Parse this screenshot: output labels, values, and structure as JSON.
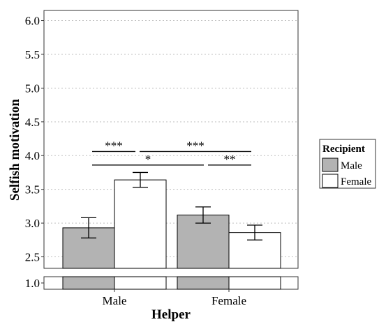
{
  "chart_data": {
    "type": "bar",
    "xlabel": "Helper",
    "ylabel": "Selfish motivation",
    "categories": [
      "Male",
      "Female"
    ],
    "series": [
      {
        "name": "Male",
        "values": [
          2.93,
          3.12
        ],
        "error": [
          0.15,
          0.12
        ],
        "color": "#b3b3b3"
      },
      {
        "name": "Female",
        "values": [
          3.64,
          2.86
        ],
        "error": [
          0.11,
          0.11
        ],
        "color": "#ffffff"
      }
    ],
    "ylim": [
      2.33,
      6.15
    ],
    "broken_axis": {
      "lower_tick": "1.0",
      "lower_tick_value": 1.0
    },
    "yticks": [
      "2.5",
      "3.0",
      "3.5",
      "4.0",
      "4.5",
      "5.0",
      "5.5",
      "6.0"
    ],
    "grid": "horizontal-dotted",
    "legend": {
      "title": "Recipient",
      "entries": [
        "Male",
        "Female"
      ],
      "placement": "right"
    },
    "significance": [
      {
        "label": "***",
        "from": "Male/Male",
        "to": "Male/Female"
      },
      {
        "label": "***",
        "from": "Male/Female",
        "to": "Female/Female"
      },
      {
        "label": "*",
        "from": "Male/Male",
        "to": "Female/Male"
      },
      {
        "label": "**",
        "from": "Female/Male",
        "to": "Female/Female"
      }
    ]
  }
}
